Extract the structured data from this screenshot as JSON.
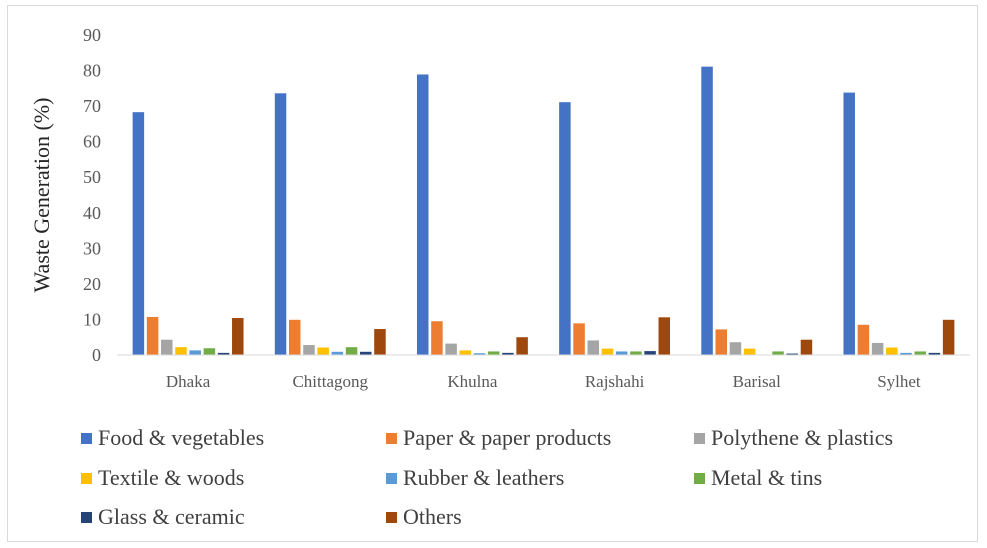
{
  "chart_data": {
    "type": "bar",
    "title": "",
    "xlabel": "",
    "ylabel": "Waste Generation (%)",
    "ylim": [
      0,
      90
    ],
    "yticks": [
      0,
      10,
      20,
      30,
      40,
      50,
      60,
      70,
      80,
      90
    ],
    "grid": false,
    "legend_position": "bottom",
    "categories": [
      "Dhaka",
      "Chittagong",
      "Khulna",
      "Rajshahi",
      "Barisal",
      "Sylhet"
    ],
    "series": [
      {
        "name": "Food & vegetables",
        "color": "#4472c4",
        "values": [
          68.3,
          73.6,
          78.9,
          71.1,
          81.1,
          73.8
        ]
      },
      {
        "name": "Paper & paper products",
        "color": "#ed7d31",
        "values": [
          10.7,
          9.9,
          9.5,
          8.9,
          7.2,
          8.5
        ]
      },
      {
        "name": "Polythene & plastics",
        "color": "#a5a5a5",
        "values": [
          4.3,
          2.8,
          3.2,
          4.1,
          3.6,
          3.4
        ]
      },
      {
        "name": "Textile & woods",
        "color": "#ffc000",
        "values": [
          2.2,
          2.1,
          1.3,
          1.8,
          1.8,
          2.1
        ]
      },
      {
        "name": "Rubber & leathers",
        "color": "#5b9bd5",
        "values": [
          1.3,
          0.9,
          0.5,
          1.0,
          0.0,
          0.6
        ]
      },
      {
        "name": "Metal & tins",
        "color": "#70ad47",
        "values": [
          1.9,
          2.2,
          1.0,
          1.0,
          1.0,
          1.0
        ]
      },
      {
        "name": "Glass & ceramic",
        "color": "#264478",
        "values": [
          0.6,
          0.9,
          0.6,
          1.1,
          0.4,
          0.6
        ]
      },
      {
        "name": "Others",
        "color": "#9e480e",
        "values": [
          10.4,
          7.3,
          5.0,
          10.6,
          4.3,
          9.9
        ]
      }
    ]
  }
}
